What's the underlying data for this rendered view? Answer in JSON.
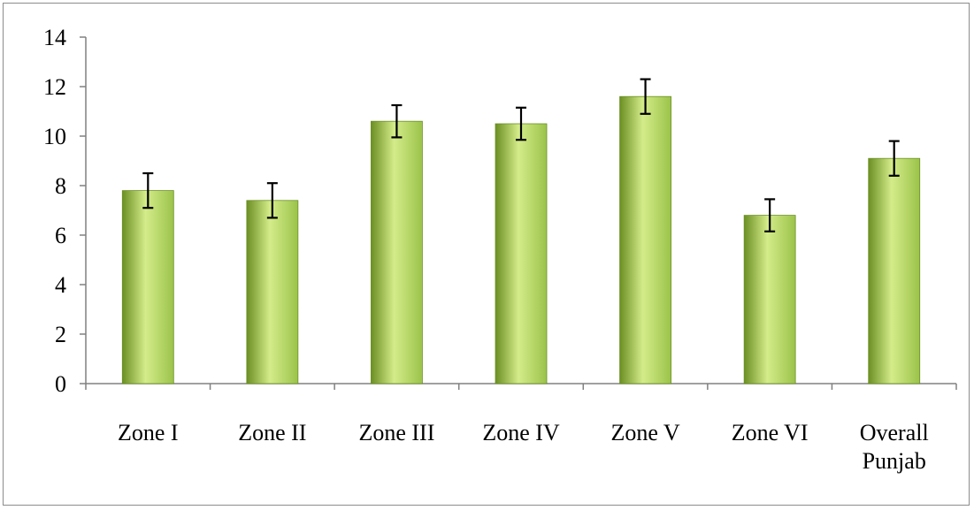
{
  "chart_data": {
    "type": "bar",
    "categories": [
      [
        "Zone I"
      ],
      [
        "Zone II"
      ],
      [
        "Zone III"
      ],
      [
        "Zone IV"
      ],
      [
        "Zone V"
      ],
      [
        "Zone VI"
      ],
      [
        "Overall",
        "Punjab"
      ]
    ],
    "values": [
      7.8,
      7.4,
      10.6,
      10.5,
      11.6,
      6.8,
      9.1
    ],
    "error": [
      0.7,
      0.7,
      0.65,
      0.65,
      0.7,
      0.65,
      0.7
    ],
    "ylim": [
      0,
      14
    ],
    "yticks": [
      0,
      2,
      4,
      6,
      8,
      10,
      12,
      14
    ],
    "title": "",
    "xlabel": "",
    "ylabel": "",
    "grid": false,
    "legend": "none",
    "colors": {
      "bar_light": "#d4ec8a",
      "bar_mid": "#9bc34a",
      "bar_dark": "#6b8f23",
      "axis": "#808080",
      "error_bar": "#000000"
    }
  }
}
